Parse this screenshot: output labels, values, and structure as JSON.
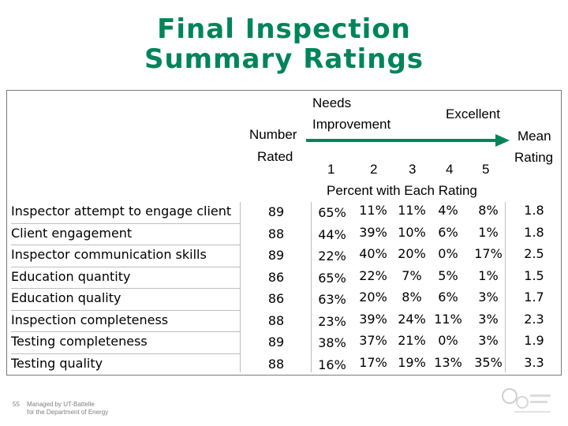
{
  "title_line1": "Final Inspection",
  "title_line2": "Summary Ratings",
  "headers": {
    "number": "Number",
    "rated": "Rated",
    "needs": "Needs",
    "improvement": "Improvement",
    "excellent": "Excellent",
    "mean": "Mean",
    "rating": "Rating",
    "scale": [
      "1",
      "2",
      "3",
      "4",
      "5"
    ],
    "percent_caption": "Percent with Each Rating"
  },
  "rows": [
    {
      "label": "Inspector attempt to engage client",
      "n": "89",
      "p": [
        "65%",
        "11%",
        "11%",
        "4%",
        "8%"
      ],
      "mean": "1.8"
    },
    {
      "label": "Client engagement",
      "n": "88",
      "p": [
        "44%",
        "39%",
        "10%",
        "6%",
        "1%"
      ],
      "mean": "1.8"
    },
    {
      "label": "Inspector communication skills",
      "n": "89",
      "p": [
        "22%",
        "40%",
        "20%",
        "0%",
        "17%"
      ],
      "mean": "2.5"
    },
    {
      "label": "Education quantity",
      "n": "86",
      "p": [
        "65%",
        "22%",
        "7%",
        "5%",
        "1%"
      ],
      "mean": "1.5"
    },
    {
      "label": "Education quality",
      "n": "86",
      "p": [
        "63%",
        "20%",
        "8%",
        "6%",
        "3%"
      ],
      "mean": "1.7"
    },
    {
      "label": "Inspection completeness",
      "n": "88",
      "p": [
        "23%",
        "39%",
        "24%",
        "11%",
        "3%"
      ],
      "mean": "2.3"
    },
    {
      "label": "Testing completeness",
      "n": "89",
      "p": [
        "38%",
        "37%",
        "21%",
        "0%",
        "3%"
      ],
      "mean": "1.9"
    },
    {
      "label": "Testing quality",
      "n": "88",
      "p": [
        "16%",
        "17%",
        "19%",
        "13%",
        "35%"
      ],
      "mean": "3.3"
    }
  ],
  "footer": {
    "page": "55",
    "line1": "Managed by UT-Battelle",
    "line2": "for the Department of Energy"
  },
  "colors": {
    "title": "#00845a",
    "arrow": "#00845a"
  }
}
